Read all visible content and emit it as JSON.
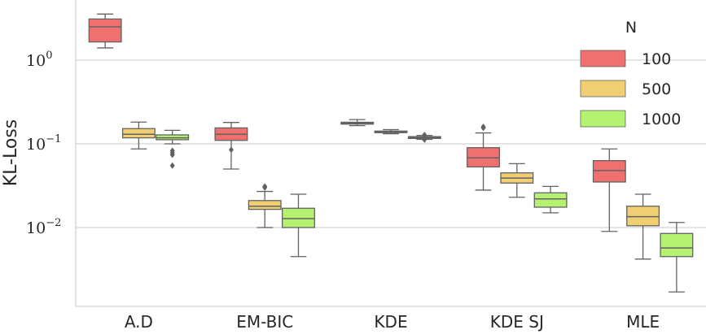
{
  "chart_data": {
    "type": "box",
    "title": "",
    "xlabel": "",
    "ylabel": "KL-Loss",
    "yscale": "log",
    "ylim": [
      0.0013,
      5.0
    ],
    "yticks": [
      {
        "value": 1,
        "base": "10",
        "exp": "0"
      },
      {
        "value": 0.1,
        "base": "10",
        "exp": "−1"
      },
      {
        "value": 0.01,
        "base": "10",
        "exp": "−2"
      }
    ],
    "grid": true,
    "legend": {
      "title": "N",
      "placement": "top-right"
    },
    "categories": [
      "A.D",
      "EM-BIC",
      "KDE",
      "KDE SJ",
      "MLE"
    ],
    "series": [
      {
        "name": "100",
        "color": "#f07070",
        "boxes": [
          {
            "whislo": 1.4,
            "q1": 1.65,
            "med": 2.5,
            "q3": 3.1,
            "whishi": 3.55,
            "fliers": []
          },
          {
            "whislo": 0.05,
            "q1": 0.11,
            "med": 0.13,
            "q3": 0.155,
            "whishi": 0.18,
            "fliers": [
              0.085
            ]
          },
          {
            "whislo": 0.165,
            "q1": 0.172,
            "med": 0.176,
            "q3": 0.181,
            "whishi": 0.195,
            "fliers": []
          },
          {
            "whislo": 0.028,
            "q1": 0.053,
            "med": 0.068,
            "q3": 0.09,
            "whishi": 0.135,
            "fliers": [
              0.155,
              0.16
            ]
          },
          {
            "whislo": 0.009,
            "q1": 0.035,
            "med": 0.048,
            "q3": 0.063,
            "whishi": 0.087,
            "fliers": []
          }
        ]
      },
      {
        "name": "500",
        "color": "#f0cf72",
        "boxes": [
          {
            "whislo": 0.087,
            "q1": 0.118,
            "med": 0.13,
            "q3": 0.152,
            "whishi": 0.182,
            "fliers": []
          },
          {
            "whislo": 0.01,
            "q1": 0.0165,
            "med": 0.018,
            "q3": 0.021,
            "whishi": 0.027,
            "fliers": [
              0.03,
              0.031
            ]
          },
          {
            "whislo": 0.132,
            "q1": 0.136,
            "med": 0.139,
            "q3": 0.142,
            "whishi": 0.148,
            "fliers": []
          },
          {
            "whislo": 0.023,
            "q1": 0.034,
            "med": 0.039,
            "q3": 0.045,
            "whishi": 0.058,
            "fliers": []
          },
          {
            "whislo": 0.0042,
            "q1": 0.0105,
            "med": 0.0135,
            "q3": 0.018,
            "whishi": 0.025,
            "fliers": []
          }
        ]
      },
      {
        "name": "1000",
        "color": "#b5f272",
        "boxes": [
          {
            "whislo": 0.1,
            "q1": 0.112,
            "med": 0.118,
            "q3": 0.128,
            "whishi": 0.145,
            "fliers": [
              0.083,
              0.078,
              0.074,
              0.055
            ]
          },
          {
            "whislo": 0.0045,
            "q1": 0.01,
            "med": 0.0128,
            "q3": 0.017,
            "whishi": 0.025,
            "fliers": []
          },
          {
            "whislo": 0.113,
            "q1": 0.116,
            "med": 0.119,
            "q3": 0.122,
            "whishi": 0.126,
            "fliers": [
              0.112,
              0.128
            ]
          },
          {
            "whislo": 0.015,
            "q1": 0.0175,
            "med": 0.022,
            "q3": 0.026,
            "whishi": 0.031,
            "fliers": []
          },
          {
            "whislo": 0.0017,
            "q1": 0.0045,
            "med": 0.0057,
            "q3": 0.0085,
            "whishi": 0.0115,
            "fliers": []
          }
        ]
      }
    ]
  }
}
